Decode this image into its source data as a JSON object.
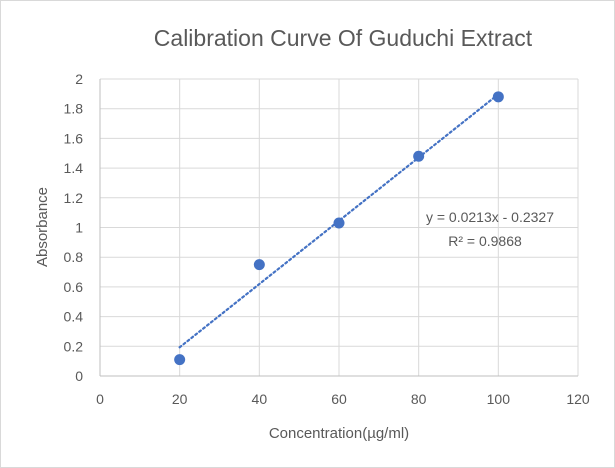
{
  "chart_data": {
    "type": "scatter",
    "title": "Calibration Curve Of Guduchi Extract",
    "xlabel": "Concentration(µg/ml)",
    "ylabel": "Absorbance",
    "xlim": [
      0,
      120
    ],
    "ylim": [
      0,
      2
    ],
    "xticks": [
      0,
      20,
      40,
      60,
      80,
      100,
      120
    ],
    "yticks": [
      0,
      0.2,
      0.4,
      0.6,
      0.8,
      1,
      1.2,
      1.4,
      1.6,
      1.8,
      2
    ],
    "grid": true,
    "legend": "none",
    "series": [
      {
        "x": [
          20,
          40,
          60,
          80,
          100
        ],
        "y": [
          0.11,
          0.75,
          1.03,
          1.48,
          1.88
        ],
        "color": "#4472c4"
      }
    ],
    "trendline": {
      "type": "linear",
      "slope": 0.0213,
      "intercept": -0.2327,
      "x_range": [
        20,
        100
      ],
      "color": "#4472c4",
      "style": "dotted",
      "equation": "y = 0.0213x - 0.2327",
      "r_squared": "R² = 0.9868"
    }
  }
}
